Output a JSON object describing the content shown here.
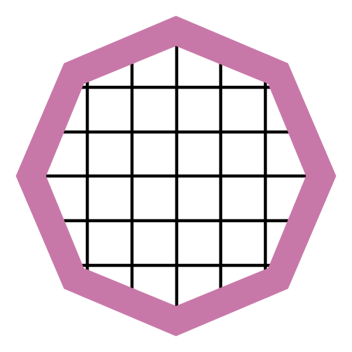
{
  "icon": {
    "name": "octagon-grid-icon",
    "colors": {
      "background": "#ffffff",
      "frame": "#c878a8",
      "grid": "#000000"
    },
    "grid": {
      "vertical_lines": 5,
      "horizontal_lines": 5
    }
  }
}
